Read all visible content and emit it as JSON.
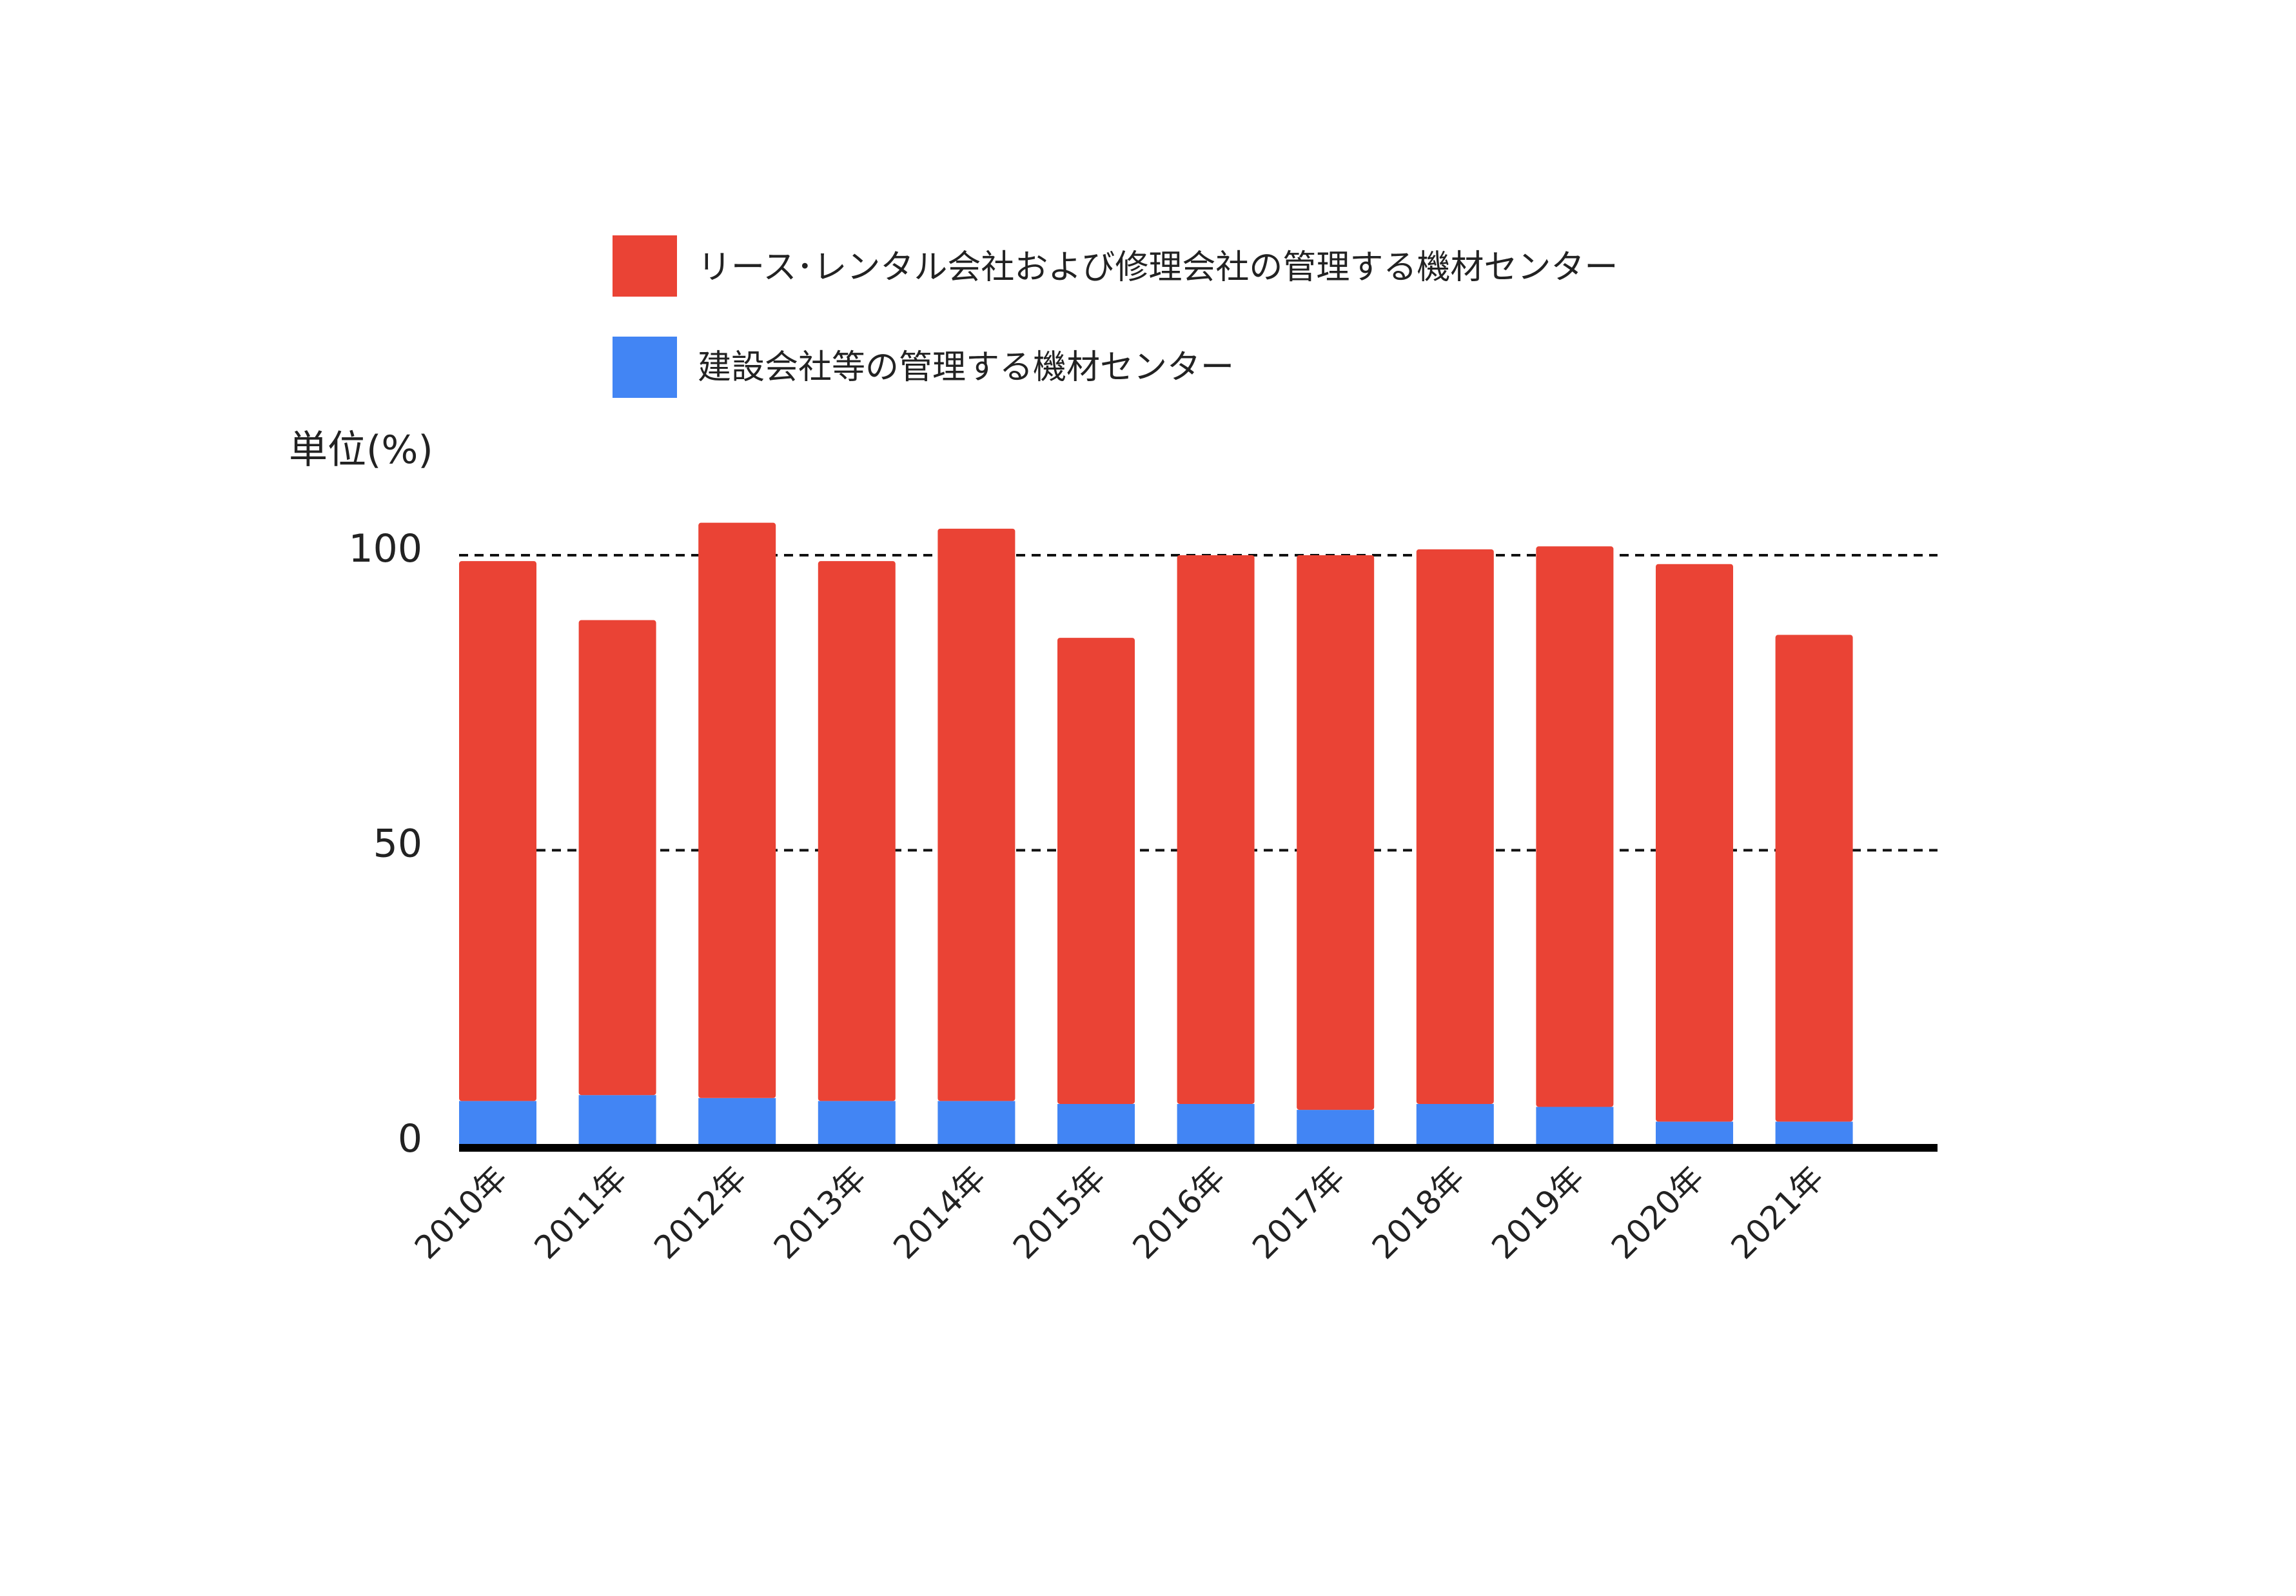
{
  "chart_data": {
    "type": "bar",
    "stacked": true,
    "unit_label": "単位(%)",
    "categories": [
      "2010年",
      "2011年",
      "2012年",
      "2013年",
      "2014年",
      "2015年",
      "2016年",
      "2017年",
      "2018年",
      "2019年",
      "2020年",
      "2021年"
    ],
    "series": [
      {
        "name": "建設会社等の管理する機材センター",
        "color": "#4285F4",
        "values": [
          7.5,
          8.5,
          8,
          7.5,
          7.5,
          7,
          7,
          6,
          7,
          6.5,
          4,
          4
        ]
      },
      {
        "name": "リース･レンタル会社および修理会社の管理する機材センター",
        "color": "#EA4335",
        "values": [
          91.5,
          80.5,
          97.5,
          91.5,
          97,
          79,
          93,
          94,
          94,
          95,
          94.5,
          82.5
        ]
      }
    ],
    "yticks": [
      0,
      50,
      100
    ],
    "ylim": [
      0,
      100
    ],
    "grid": "dashed at 50 and 100",
    "legend_position": "top"
  }
}
